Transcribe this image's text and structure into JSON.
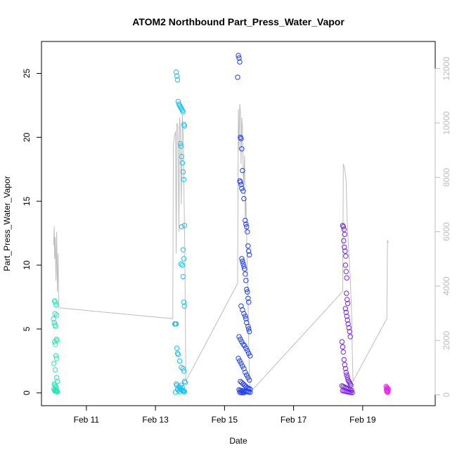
{
  "chart_data": {
    "type": "scatter",
    "title": "ATOM2 Northbound Part_Press_Water_Vapor",
    "xlabel": "Date",
    "ylabel": "Part_Press_Water_Vapor",
    "x_ticks": [
      "Feb 11",
      "Feb 13",
      "Feb 15",
      "Feb 17",
      "Feb 19"
    ],
    "x_tick_days": [
      11,
      13,
      15,
      17,
      19
    ],
    "xlim": [
      9.7,
      21.1
    ],
    "y_ticks": [
      0,
      5,
      10,
      15,
      20,
      25
    ],
    "ylim": [
      -1.0,
      27.5
    ],
    "y2_ticks": [
      0,
      2000,
      4000,
      6000,
      8000,
      10000,
      12000
    ],
    "y2lim": [
      -400,
      13000
    ],
    "grid": false,
    "color_map": "rainbow by time (green to cyan to blue to purple to magenta)",
    "series": [
      {
        "color": "#22e6b4",
        "x_days": [
          10.08,
          10.1,
          10.12,
          10.14,
          10.05,
          10.07,
          10.09,
          10.11,
          10.13,
          10.15,
          10.08,
          10.1,
          10.12,
          10.14,
          10.06,
          10.1,
          10.14,
          10.16,
          10.07,
          10.09,
          10.11,
          10.13,
          10.06,
          10.08,
          10.1,
          10.12,
          10.14,
          10.16,
          10.09,
          10.11
        ],
        "values": [
          7.2,
          7.1,
          6.9,
          6.1,
          5.8,
          5.5,
          5.3,
          5.2,
          4.2,
          4.1,
          4.0,
          3.8,
          2.9,
          2.7,
          2.3,
          1.8,
          1.2,
          0.9,
          0.7,
          0.6,
          0.5,
          0.4,
          0.3,
          0.2,
          0.15,
          0.12,
          0.1,
          0.1,
          6.2,
          0.25
        ]
      },
      {
        "color": "#1ec0f0",
        "x_days": [
          13.6,
          13.62,
          13.64,
          13.66,
          13.68,
          13.7,
          13.72,
          13.74,
          13.76,
          13.78,
          13.8,
          13.82,
          13.84,
          13.72,
          13.74,
          13.76,
          13.78,
          13.8,
          13.82,
          13.84,
          13.76,
          13.8,
          13.82,
          13.74,
          13.78,
          13.8,
          13.82,
          13.84,
          13.56,
          13.58,
          13.6,
          13.62,
          13.64,
          13.66,
          13.7,
          13.75,
          13.8,
          13.82,
          13.84,
          13.86,
          13.6,
          13.62,
          13.68,
          13.7,
          13.72,
          13.76,
          13.78,
          13.8,
          13.82,
          13.84,
          13.58,
          13.64,
          13.66,
          13.7,
          13.74,
          13.78
        ],
        "values": [
          25.1,
          24.8,
          24.5,
          22.8,
          22.6,
          22.5,
          22.4,
          22.3,
          22.2,
          22.1,
          22.0,
          21.0,
          20.9,
          19.5,
          19.3,
          18.5,
          18.0,
          17.3,
          16.7,
          13.1,
          13.0,
          11.2,
          10.5,
          10.1,
          10.0,
          9.1,
          7.1,
          6.8,
          5.4,
          5.4,
          5.4,
          3.5,
          3.1,
          3.0,
          2.5,
          2.0,
          1.9,
          1.7,
          0.9,
          0.8,
          0.7,
          0.6,
          0.5,
          0.4,
          0.3,
          0.25,
          0.2,
          0.15,
          0.1,
          0.1,
          0.05,
          0.3,
          0.2,
          0.1,
          0.6,
          0.4
        ]
      },
      {
        "color": "#1e3cf0",
        "x_days": [
          15.4,
          15.42,
          15.44,
          15.38,
          15.46,
          15.48,
          15.5,
          15.52,
          15.44,
          15.46,
          15.48,
          15.5,
          15.54,
          15.56,
          15.6,
          15.62,
          15.64,
          15.66,
          15.68,
          15.7,
          15.72,
          15.5,
          15.52,
          15.54,
          15.56,
          15.58,
          15.6,
          15.62,
          15.64,
          15.66,
          15.68,
          15.7,
          15.48,
          15.52,
          15.56,
          15.6,
          15.62,
          15.64,
          15.68,
          15.7,
          15.72,
          15.42,
          15.46,
          15.5,
          15.54,
          15.58,
          15.62,
          15.66,
          15.7,
          15.74,
          15.4,
          15.44,
          15.48,
          15.52,
          15.56,
          15.6,
          15.64,
          15.68,
          15.72,
          15.46,
          15.5,
          15.54,
          15.58,
          15.62,
          15.66,
          15.7,
          15.74,
          15.42,
          15.46,
          15.5,
          15.54,
          15.58,
          15.62,
          15.66,
          15.7,
          15.74,
          15.44,
          15.48,
          15.52,
          15.56
        ],
        "values": [
          26.4,
          26.2,
          25.9,
          24.7,
          20.0,
          19.9,
          19.1,
          17.4,
          16.6,
          16.5,
          16.3,
          16.0,
          15.8,
          15.2,
          13.5,
          13.2,
          13.0,
          12.6,
          11.5,
          11.1,
          10.8,
          10.5,
          10.3,
          10.1,
          9.9,
          9.7,
          9.3,
          8.8,
          8.1,
          7.9,
          7.4,
          7.1,
          6.8,
          6.5,
          6.2,
          6.0,
          5.8,
          5.5,
          5.2,
          5.0,
          4.8,
          4.4,
          4.2,
          4.0,
          3.8,
          3.7,
          3.5,
          3.3,
          3.1,
          2.9,
          2.7,
          2.5,
          2.3,
          2.1,
          1.9,
          1.6,
          1.4,
          1.2,
          1.0,
          0.9,
          0.8,
          0.7,
          0.6,
          0.5,
          0.4,
          0.35,
          0.3,
          0.25,
          0.2,
          0.18,
          0.15,
          0.12,
          0.1,
          0.1,
          0.08,
          0.05,
          0.05,
          0.03,
          0.02,
          0.01
        ]
      },
      {
        "color": "#7a22e8",
        "x_days": [
          18.42,
          18.44,
          18.46,
          18.48,
          18.45,
          18.47,
          18.49,
          18.51,
          18.5,
          18.52,
          18.54,
          18.53,
          18.55,
          18.57,
          18.5,
          18.52,
          18.54,
          18.56,
          18.58,
          18.6,
          18.62,
          18.64,
          18.4,
          18.42,
          18.44,
          18.46,
          18.48,
          18.5,
          18.52,
          18.54,
          18.56,
          18.58,
          18.6,
          18.62,
          18.64,
          18.66,
          18.4,
          18.44,
          18.48,
          18.52,
          18.56,
          18.6,
          18.64,
          18.68,
          18.42,
          18.46,
          18.5,
          18.54,
          18.58,
          18.62,
          18.66,
          18.7
        ],
        "values": [
          13.1,
          13.0,
          12.8,
          12.4,
          11.9,
          11.4,
          11.1,
          10.7,
          10.0,
          9.5,
          9.0,
          7.8,
          7.3,
          7.0,
          6.6,
          6.3,
          6.0,
          5.7,
          5.4,
          5.1,
          4.8,
          4.4,
          4.0,
          3.6,
          3.2,
          2.6,
          2.2,
          1.9,
          1.6,
          1.4,
          1.2,
          1.0,
          0.9,
          0.8,
          0.7,
          0.6,
          0.55,
          0.5,
          0.45,
          0.4,
          0.35,
          0.3,
          0.25,
          0.2,
          0.18,
          0.15,
          0.12,
          0.1,
          0.08,
          0.06,
          0.04,
          0.02
        ]
      },
      {
        "color": "#ee22ee",
        "x_days": [
          19.68,
          19.7,
          19.72,
          19.74,
          19.69,
          19.71,
          19.73,
          19.7,
          19.72
        ],
        "values": [
          0.5,
          0.4,
          0.35,
          0.3,
          0.25,
          0.2,
          0.15,
          0.1,
          0.05
        ]
      }
    ],
    "secondary_line": {
      "color": "#bdbdbd",
      "axis": "right",
      "x_days": [
        10.05,
        10.07,
        10.08,
        10.1,
        10.12,
        10.14,
        10.16,
        10.18,
        10.2,
        13.5,
        13.52,
        13.55,
        13.58,
        13.6,
        13.62,
        13.65,
        13.68,
        13.7,
        13.72,
        13.75,
        13.78,
        13.8,
        13.82,
        13.85,
        13.88,
        15.38,
        15.4,
        15.42,
        15.44,
        15.46,
        15.48,
        15.5,
        15.52,
        15.55,
        15.58,
        15.6,
        15.62,
        15.65,
        15.68,
        15.7,
        15.72,
        15.75,
        18.42,
        18.44,
        18.46,
        18.48,
        18.5,
        18.52,
        18.55,
        18.58,
        18.6,
        18.62,
        18.65,
        18.68,
        18.7,
        18.72,
        19.7,
        19.72,
        19.74
      ],
      "values": [
        5500,
        6200,
        5000,
        5800,
        4200,
        6000,
        3800,
        5200,
        3200,
        2800,
        9200,
        9500,
        9700,
        5200,
        10000,
        9900,
        6000,
        10200,
        9800,
        7000,
        10300,
        9600,
        8000,
        5200,
        500,
        4100,
        10500,
        9000,
        10700,
        10400,
        8500,
        10200,
        9800,
        7500,
        8800,
        6500,
        7200,
        5200,
        3500,
        2000,
        800,
        100,
        3800,
        8500,
        8400,
        8300,
        8100,
        7900,
        6500,
        5700,
        5200,
        4800,
        4000,
        3000,
        1500,
        500,
        2800,
        5700,
        5600
      ]
    }
  }
}
